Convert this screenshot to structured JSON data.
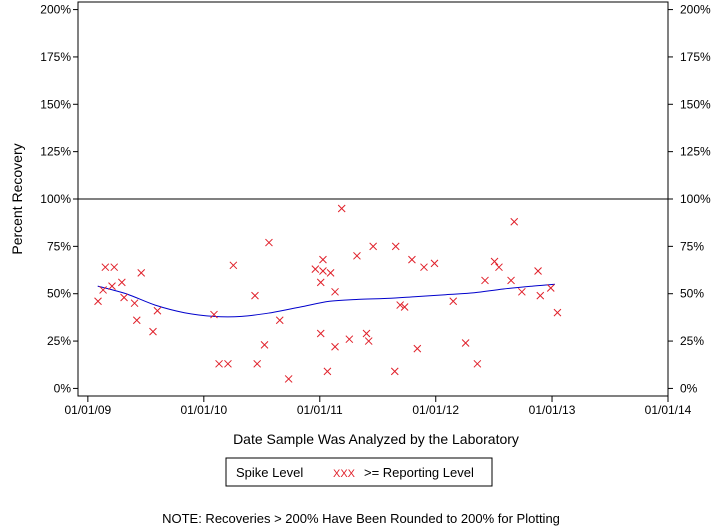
{
  "chart_data": {
    "type": "scatter",
    "xlabel": "Date Sample Was Analyzed by the Laboratory",
    "ylabel": "Percent Recovery",
    "x_range": [
      "2008-12-01",
      "2014-01-01"
    ],
    "ylim": [
      -4,
      204
    ],
    "x_ticks": [
      {
        "date": "2009-01-01",
        "label": "01/01/09"
      },
      {
        "date": "2010-01-01",
        "label": "01/01/10"
      },
      {
        "date": "2011-01-01",
        "label": "01/01/11"
      },
      {
        "date": "2012-01-01",
        "label": "01/01/12"
      },
      {
        "date": "2013-01-01",
        "label": "01/01/13"
      },
      {
        "date": "2014-01-01",
        "label": "01/01/14"
      }
    ],
    "y_ticks": [
      {
        "value": 0,
        "label": "0%"
      },
      {
        "value": 25,
        "label": "25%"
      },
      {
        "value": 50,
        "label": "50%"
      },
      {
        "value": 75,
        "label": "75%"
      },
      {
        "value": 100,
        "label": "100%"
      },
      {
        "value": 125,
        "label": "125%"
      },
      {
        "value": 150,
        "label": "150%"
      },
      {
        "value": 175,
        "label": "175%"
      },
      {
        "value": 200,
        "label": "200%"
      }
    ],
    "reference_line": 100,
    "series": [
      {
        "name": ">= Reporting Level",
        "marker": "x",
        "color": "#e0202a",
        "points": [
          {
            "x": "2009-02-02",
            "y": 46
          },
          {
            "x": "2009-02-18",
            "y": 52
          },
          {
            "x": "2009-02-25",
            "y": 64
          },
          {
            "x": "2009-03-18",
            "y": 54
          },
          {
            "x": "2009-03-25",
            "y": 64
          },
          {
            "x": "2009-04-18",
            "y": 56
          },
          {
            "x": "2009-04-25",
            "y": 48
          },
          {
            "x": "2009-05-28",
            "y": 45
          },
          {
            "x": "2009-06-04",
            "y": 36
          },
          {
            "x": "2009-06-18",
            "y": 61
          },
          {
            "x": "2009-07-25",
            "y": 30
          },
          {
            "x": "2009-08-08",
            "y": 41
          },
          {
            "x": "2010-02-02",
            "y": 39
          },
          {
            "x": "2010-02-18",
            "y": 13
          },
          {
            "x": "2010-03-18",
            "y": 13
          },
          {
            "x": "2010-04-04",
            "y": 65
          },
          {
            "x": "2010-06-11",
            "y": 49
          },
          {
            "x": "2010-06-18",
            "y": 13
          },
          {
            "x": "2010-07-11",
            "y": 23
          },
          {
            "x": "2010-07-25",
            "y": 77
          },
          {
            "x": "2010-08-28",
            "y": 36
          },
          {
            "x": "2010-09-25",
            "y": 5
          },
          {
            "x": "2010-12-18",
            "y": 63
          },
          {
            "x": "2011-01-04",
            "y": 29
          },
          {
            "x": "2011-01-04",
            "y": 56
          },
          {
            "x": "2011-01-11",
            "y": 68
          },
          {
            "x": "2011-01-11",
            "y": 62
          },
          {
            "x": "2011-01-25",
            "y": 9
          },
          {
            "x": "2011-02-04",
            "y": 61
          },
          {
            "x": "2011-02-18",
            "y": 22
          },
          {
            "x": "2011-02-18",
            "y": 51
          },
          {
            "x": "2011-03-11",
            "y": 95
          },
          {
            "x": "2011-04-04",
            "y": 26
          },
          {
            "x": "2011-04-28",
            "y": 70
          },
          {
            "x": "2011-05-28",
            "y": 29
          },
          {
            "x": "2011-06-04",
            "y": 25
          },
          {
            "x": "2011-06-18",
            "y": 75
          },
          {
            "x": "2011-08-25",
            "y": 9
          },
          {
            "x": "2011-08-28",
            "y": 75
          },
          {
            "x": "2011-09-11",
            "y": 44
          },
          {
            "x": "2011-09-25",
            "y": 43
          },
          {
            "x": "2011-10-18",
            "y": 68
          },
          {
            "x": "2011-11-04",
            "y": 21
          },
          {
            "x": "2011-11-25",
            "y": 64
          },
          {
            "x": "2011-12-28",
            "y": 66
          },
          {
            "x": "2012-02-25",
            "y": 46
          },
          {
            "x": "2012-04-04",
            "y": 24
          },
          {
            "x": "2012-05-11",
            "y": 13
          },
          {
            "x": "2012-06-04",
            "y": 57
          },
          {
            "x": "2012-07-04",
            "y": 67
          },
          {
            "x": "2012-07-18",
            "y": 64
          },
          {
            "x": "2012-08-25",
            "y": 57
          },
          {
            "x": "2012-09-04",
            "y": 88
          },
          {
            "x": "2012-09-28",
            "y": 51
          },
          {
            "x": "2012-11-18",
            "y": 62
          },
          {
            "x": "2012-11-25",
            "y": 49
          },
          {
            "x": "2012-12-28",
            "y": 53
          },
          {
            "x": "2013-01-18",
            "y": 40
          }
        ]
      }
    ],
    "trend": {
      "color": "#0000cc",
      "points": [
        {
          "x": "2009-02-01",
          "y": 54
        },
        {
          "x": "2009-05-01",
          "y": 50
        },
        {
          "x": "2009-08-01",
          "y": 44
        },
        {
          "x": "2009-11-01",
          "y": 40
        },
        {
          "x": "2010-02-01",
          "y": 38
        },
        {
          "x": "2010-05-01",
          "y": 38
        },
        {
          "x": "2010-08-01",
          "y": 40
        },
        {
          "x": "2010-11-01",
          "y": 43
        },
        {
          "x": "2011-02-01",
          "y": 46
        },
        {
          "x": "2011-05-01",
          "y": 47
        },
        {
          "x": "2011-08-01",
          "y": 47.5
        },
        {
          "x": "2011-11-01",
          "y": 48.5
        },
        {
          "x": "2012-02-01",
          "y": 49.5
        },
        {
          "x": "2012-05-01",
          "y": 50.5
        },
        {
          "x": "2012-08-01",
          "y": 52.5
        },
        {
          "x": "2012-11-01",
          "y": 54
        },
        {
          "x": "2013-01-10",
          "y": 55
        }
      ]
    },
    "legend": {
      "position": "bottom-center",
      "entries": [
        "Spike Level",
        ">= Reporting Level"
      ],
      "marker_text": "XXX"
    },
    "note": "NOTE: Recoveries > 200% Have Been Rounded to 200% for Plotting",
    "grid": false
  }
}
